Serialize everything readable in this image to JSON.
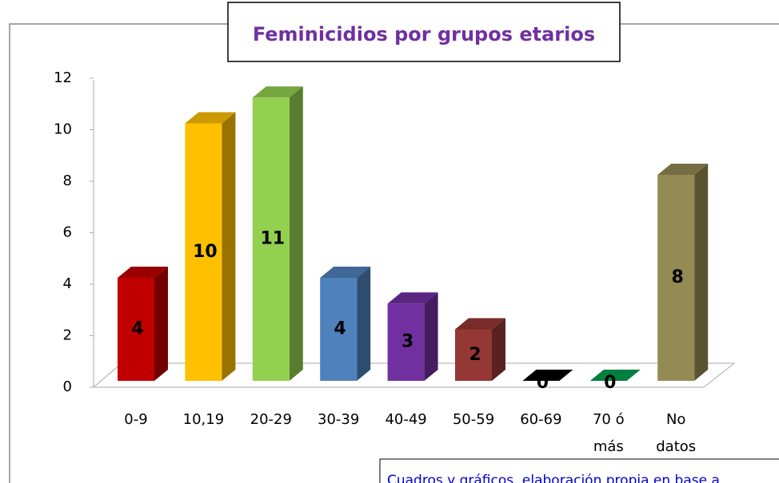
{
  "chart_data": {
    "type": "bar3d",
    "title": "Feminicidios por grupos etarios",
    "categories": [
      "0-9",
      "10,19",
      "20-29",
      "30-39",
      "40-49",
      "50-59",
      "60-69",
      "70 ó\nmás",
      "No\ndatos"
    ],
    "values": [
      4,
      10,
      11,
      4,
      3,
      2,
      0,
      0,
      8
    ],
    "colors": [
      "#c00000",
      "#ffc000",
      "#92d050",
      "#4f81bd",
      "#7030a0",
      "#953735",
      "#000000",
      "#00a050",
      "#948a54"
    ],
    "ylim": [
      0,
      12
    ],
    "yticks": [
      0,
      2,
      4,
      6,
      8,
      10,
      12
    ],
    "grid": false,
    "note": "Cuadros y gráficos, elaboración propia en base a"
  }
}
